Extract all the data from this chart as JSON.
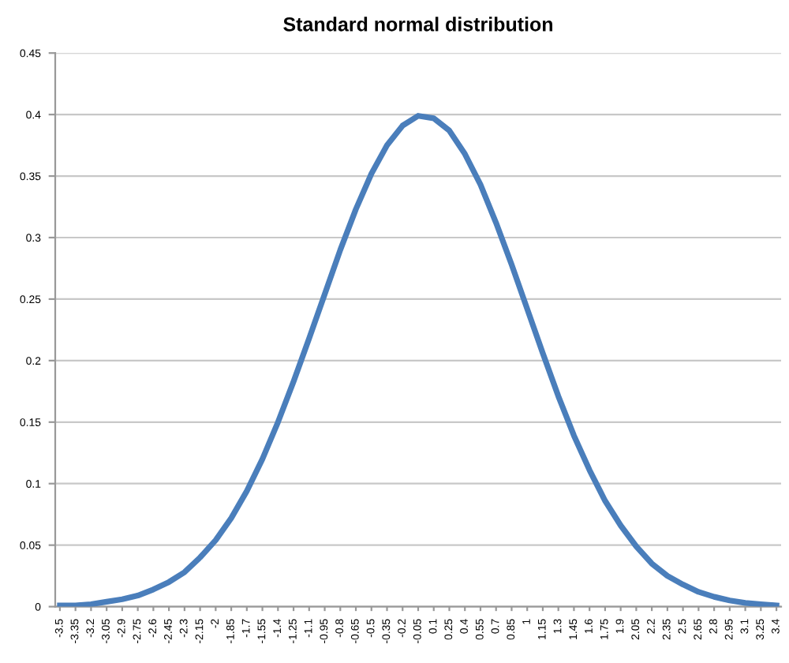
{
  "chart_data": {
    "type": "line",
    "title": "Standard normal distribution",
    "categories": [
      "-3.5",
      "-3.35",
      "-3.2",
      "-3.05",
      "-2.9",
      "-2.75",
      "-2.6",
      "-2.45",
      "-2.3",
      "-2.15",
      "-2",
      "-1.85",
      "-1.7",
      "-1.55",
      "-1.4",
      "-1.25",
      "-1.1",
      "-0.95",
      "-0.8",
      "-0.65",
      "-0.5",
      "-0.35",
      "-0.2",
      "-0.05",
      "0.1",
      "0.25",
      "0.4",
      "0.55",
      "0.7",
      "0.85",
      "1",
      "1.15",
      "1.3",
      "1.45",
      "1.6",
      "1.75",
      "1.9",
      "2.05",
      "2.2",
      "2.35",
      "2.5",
      "2.65",
      "2.8",
      "2.95",
      "3.1",
      "3.25",
      "3.4"
    ],
    "series": [
      {
        "color": "#4a7ebb",
        "values": [
          0.001,
          0.001,
          0.002,
          0.004,
          0.006,
          0.009,
          0.014,
          0.02,
          0.028,
          0.04,
          0.054,
          0.072,
          0.094,
          0.12,
          0.15,
          0.183,
          0.218,
          0.254,
          0.29,
          0.323,
          0.352,
          0.375,
          0.391,
          0.399,
          0.397,
          0.387,
          0.368,
          0.343,
          0.312,
          0.278,
          0.242,
          0.206,
          0.171,
          0.139,
          0.111,
          0.086,
          0.066,
          0.049,
          0.035,
          0.025,
          0.018,
          0.012,
          0.008,
          0.005,
          0.003,
          0.002,
          0.001
        ]
      }
    ],
    "ylim": [
      0,
      0.45
    ],
    "yticks": [
      0,
      0.05,
      0.1,
      0.15,
      0.2,
      0.25,
      0.3,
      0.35,
      0.4,
      0.45
    ],
    "grid": "y",
    "marker": "none",
    "line_style": "solid"
  }
}
